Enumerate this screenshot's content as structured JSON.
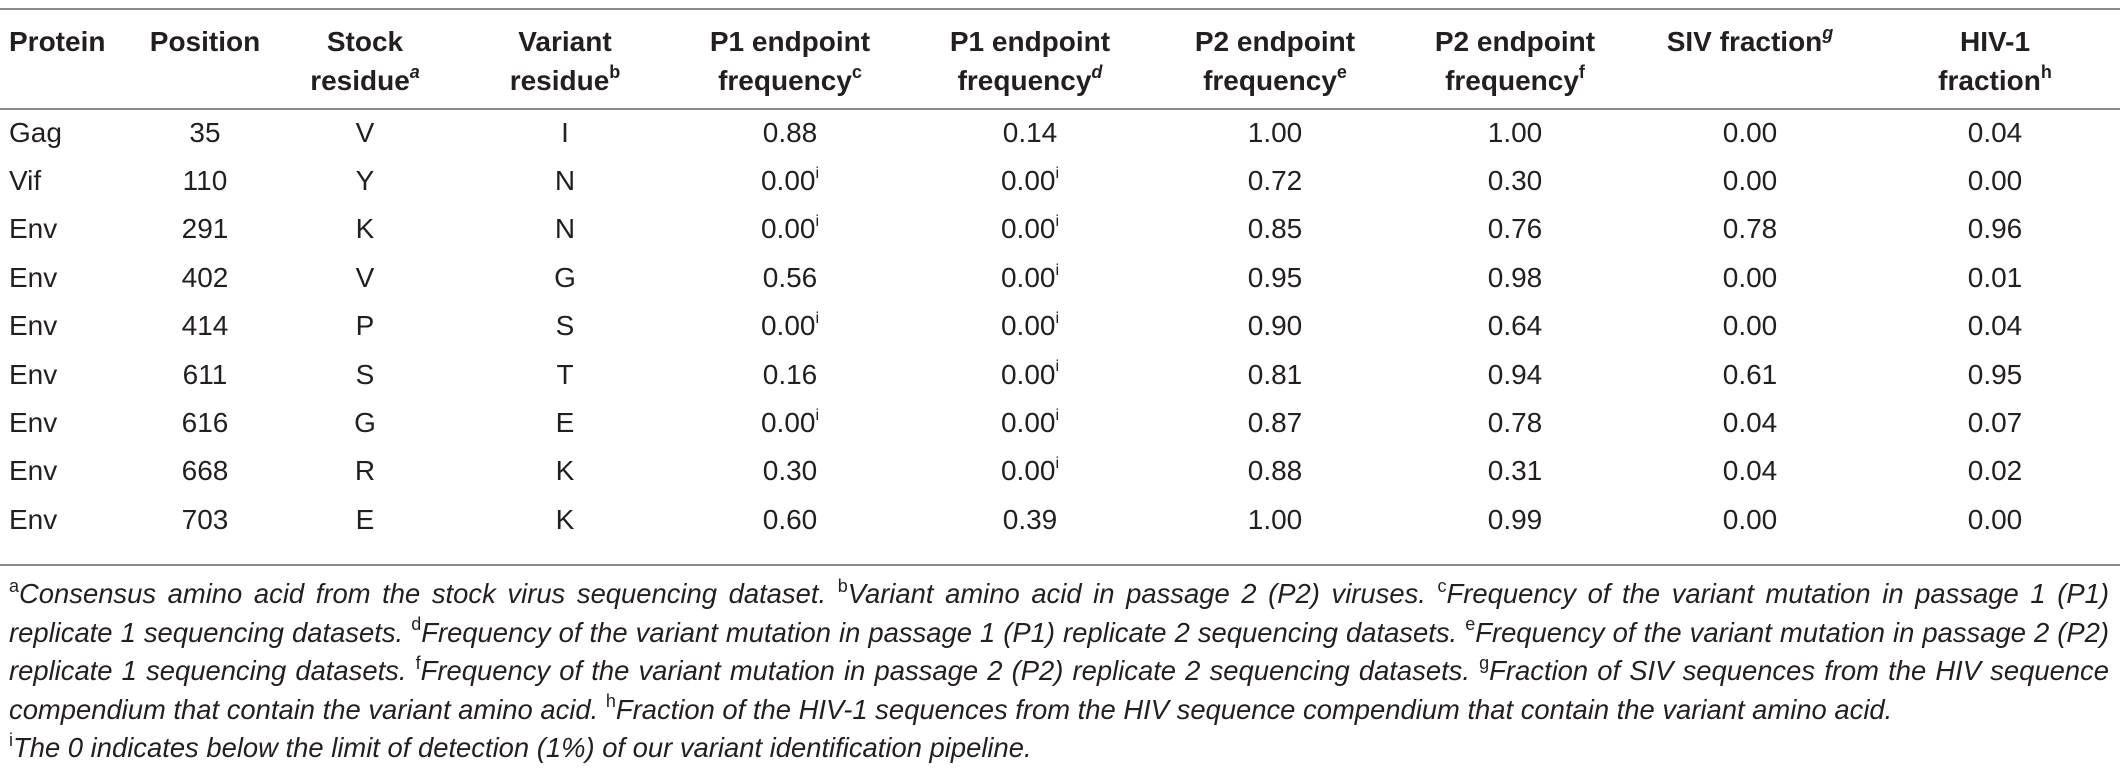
{
  "table": {
    "headers": [
      {
        "line1": "Protein",
        "line2": "",
        "sup": "",
        "sup_italic": false
      },
      {
        "line1": "Position",
        "line2": "",
        "sup": "",
        "sup_italic": false
      },
      {
        "line1": "Stock",
        "line2": "residue",
        "sup": "a",
        "sup_italic": true
      },
      {
        "line1": "Variant",
        "line2": "residue",
        "sup": "b",
        "sup_italic": false
      },
      {
        "line1": "P1 endpoint",
        "line2": "frequency",
        "sup": "c",
        "sup_italic": false
      },
      {
        "line1": "P1 endpoint",
        "line2": "frequency",
        "sup": "d",
        "sup_italic": true
      },
      {
        "line1": "P2 endpoint",
        "line2": "frequency",
        "sup": "e",
        "sup_italic": false
      },
      {
        "line1": "P2 endpoint",
        "line2": "frequency",
        "sup": "f",
        "sup_italic": false
      },
      {
        "line1": "SIV fraction",
        "line2": "",
        "sup": "g",
        "sup_italic": true
      },
      {
        "line1": "HIV-1",
        "line2": "fraction",
        "sup": "h",
        "sup_italic": false
      }
    ],
    "rows": [
      {
        "protein": "Gag",
        "position": "35",
        "stock": "V",
        "variant": "I",
        "p1r1": "0.88",
        "p1r1_sup": "",
        "p1r2": "0.14",
        "p1r2_sup": "",
        "p2r1": "1.00",
        "p2r2": "1.00",
        "siv": "0.00",
        "hiv": "0.04"
      },
      {
        "protein": "Vif",
        "position": "110",
        "stock": "Y",
        "variant": "N",
        "p1r1": "0.00",
        "p1r1_sup": "i",
        "p1r2": "0.00",
        "p1r2_sup": "i",
        "p2r1": "0.72",
        "p2r2": "0.30",
        "siv": "0.00",
        "hiv": "0.00"
      },
      {
        "protein": "Env",
        "position": "291",
        "stock": "K",
        "variant": "N",
        "p1r1": "0.00",
        "p1r1_sup": "i",
        "p1r2": "0.00",
        "p1r2_sup": "i",
        "p2r1": "0.85",
        "p2r2": "0.76",
        "siv": "0.78",
        "hiv": "0.96"
      },
      {
        "protein": "Env",
        "position": "402",
        "stock": "V",
        "variant": "G",
        "p1r1": "0.56",
        "p1r1_sup": "",
        "p1r2": "0.00",
        "p1r2_sup": "i",
        "p2r1": "0.95",
        "p2r2": "0.98",
        "siv": "0.00",
        "hiv": "0.01"
      },
      {
        "protein": "Env",
        "position": "414",
        "stock": "P",
        "variant": "S",
        "p1r1": "0.00",
        "p1r1_sup": "i",
        "p1r2": "0.00",
        "p1r2_sup": "i",
        "p2r1": "0.90",
        "p2r2": "0.64",
        "siv": "0.00",
        "hiv": "0.04"
      },
      {
        "protein": "Env",
        "position": "611",
        "stock": "S",
        "variant": "T",
        "p1r1": "0.16",
        "p1r1_sup": "",
        "p1r2": "0.00",
        "p1r2_sup": "i",
        "p2r1": "0.81",
        "p2r2": "0.94",
        "siv": "0.61",
        "hiv": "0.95"
      },
      {
        "protein": "Env",
        "position": "616",
        "stock": "G",
        "variant": "E",
        "p1r1": "0.00",
        "p1r1_sup": "i",
        "p1r2": "0.00",
        "p1r2_sup": "i",
        "p2r1": "0.87",
        "p2r2": "0.78",
        "siv": "0.04",
        "hiv": "0.07"
      },
      {
        "protein": "Env",
        "position": "668",
        "stock": "R",
        "variant": "K",
        "p1r1": "0.30",
        "p1r1_sup": "",
        "p1r2": "0.00",
        "p1r2_sup": "i",
        "p2r1": "0.88",
        "p2r2": "0.31",
        "siv": "0.04",
        "hiv": "0.02"
      },
      {
        "protein": "Env",
        "position": "703",
        "stock": "E",
        "variant": "K",
        "p1r1": "0.60",
        "p1r1_sup": "",
        "p1r2": "0.39",
        "p1r2_sup": "",
        "p2r1": "1.00",
        "p2r2": "0.99",
        "siv": "0.00",
        "hiv": "0.00"
      }
    ]
  },
  "footnotes": [
    {
      "mark": "a",
      "text": "Consensus amino acid from the stock virus sequencing dataset."
    },
    {
      "mark": "b",
      "text": "Variant amino acid in passage 2 (P2) viruses."
    },
    {
      "mark": "c",
      "text": "Frequency of the variant mutation in passage 1 (P1) replicate 1 sequencing datasets."
    },
    {
      "mark": "d",
      "text": "Frequency of the variant mutation in passage 1 (P1) replicate 2 sequencing datasets."
    },
    {
      "mark": "e",
      "text": "Frequency of the variant mutation in passage 2 (P2) replicate 1 sequencing datasets."
    },
    {
      "mark": "f",
      "text": "Frequency of the variant mutation in passage 2 (P2) replicate 2 sequencing datasets."
    },
    {
      "mark": "g",
      "text": "Fraction of SIV sequences from the HIV sequence compendium that contain the variant amino acid."
    },
    {
      "mark": "h",
      "text": "Fraction of the HIV-1 sequences from the HIV sequence compendium that contain the variant amino acid."
    },
    {
      "mark": "i",
      "text": "The 0 indicates below the limit of detection (1%) of our variant identification pipeline.",
      "newline": true
    }
  ]
}
